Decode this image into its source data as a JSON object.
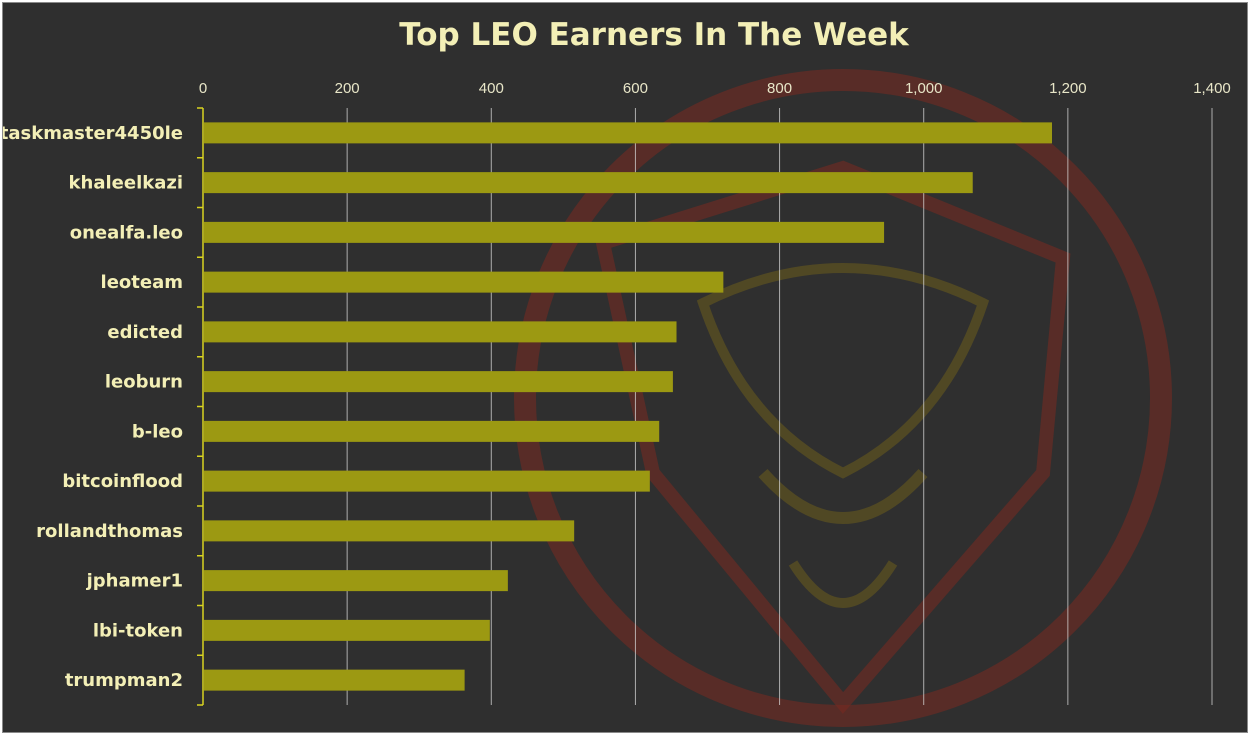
{
  "chart_data": {
    "type": "bar",
    "orientation": "horizontal",
    "title": "Top LEO Earners In The Week",
    "categories": [
      "taskmaster4450le",
      "khaleelkazi",
      "onealfa.leo",
      "leoteam",
      "edicted",
      "leoburn",
      "b-leo",
      "bitcoinflood",
      "rollandthomas",
      "jphamer1",
      "lbi-token",
      "trumpman2"
    ],
    "values": [
      1178,
      1068,
      945,
      722,
      657,
      652,
      633,
      620,
      515,
      423,
      398,
      363
    ],
    "xlim": [
      0,
      1400
    ],
    "x_ticks": [
      0,
      200,
      400,
      600,
      800,
      1000,
      1200,
      1400
    ],
    "x_tick_labels": [
      "0",
      "200",
      "400",
      "600",
      "800",
      "1,000",
      "1,200",
      "1,400"
    ],
    "x_axis_position": "top",
    "grid": "vertical",
    "legend": "none",
    "colors": {
      "bar": "#9c9912",
      "background": "#2f2f2f",
      "grid": "#d8d8d8",
      "axis": "#d9d420",
      "text": "#f3efb6",
      "watermark": "#8a2a20"
    }
  }
}
